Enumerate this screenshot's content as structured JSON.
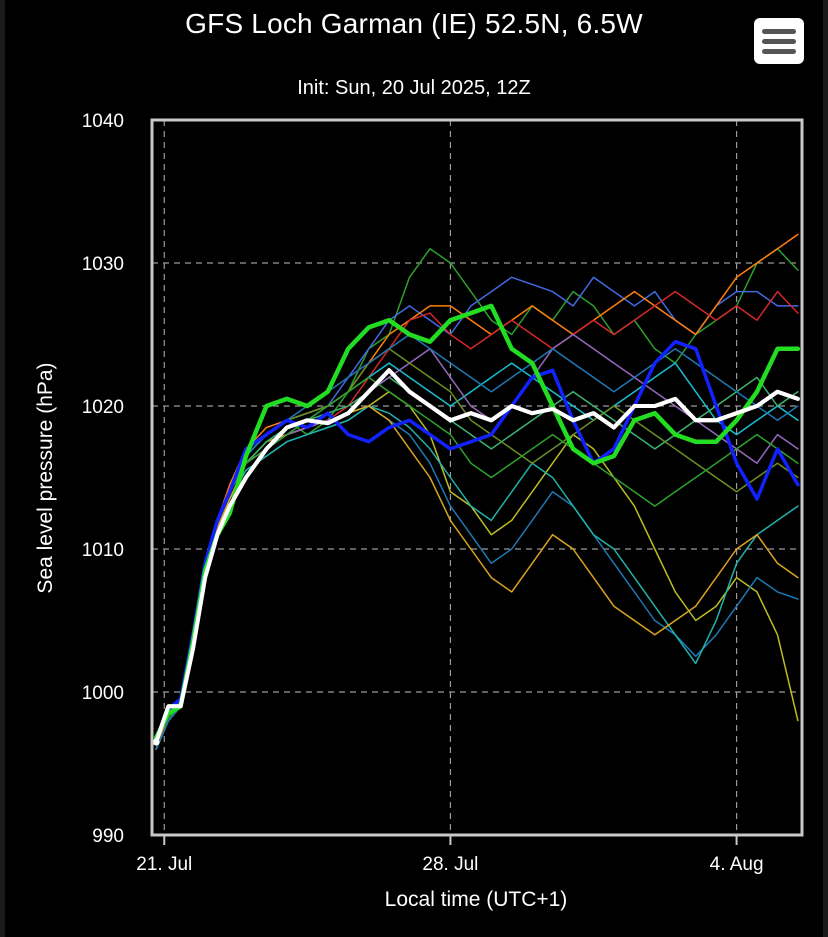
{
  "chart_data": {
    "type": "line",
    "title": "GFS Loch Garman (IE) 52.5N, 6.5W",
    "subtitle": "Init: Sun, 20 Jul 2025, 12Z",
    "xlabel": "Local time (UTC+1)",
    "ylabel": "Sea level pressure (hPa)",
    "x_ticks": [
      {
        "day": 1,
        "label": "21. Jul"
      },
      {
        "day": 8,
        "label": "28. Jul"
      },
      {
        "day": 15,
        "label": "4. Aug"
      }
    ],
    "y_ticks": [
      990,
      1000,
      1010,
      1020,
      1030,
      1040
    ],
    "xlim": [
      0.7,
      16.6
    ],
    "ylim": [
      990,
      1040
    ],
    "grid": true,
    "colors": {
      "background": "#000000",
      "frame": "#c8c8c8",
      "grid": "#9a9a9a",
      "mean": "#ffffff",
      "green": "#22dd22",
      "blue": "#1122ff",
      "ensemble_palette": [
        "#1f77b4",
        "#2ca02c",
        "#17becf",
        "#bcbd22",
        "#ff7f0e",
        "#d62728",
        "#9467bd",
        "#3cb371",
        "#4169e1",
        "#20b2aa",
        "#daa520",
        "#6b8e23"
      ]
    },
    "series_x": [
      0.8,
      1.1,
      1.4,
      1.7,
      2.0,
      2.3,
      2.6,
      3.0,
      3.5,
      4.0,
      4.5,
      5.0,
      5.5,
      6.0,
      6.5,
      7.0,
      7.5,
      8.0,
      8.5,
      9.0,
      9.5,
      10.0,
      10.5,
      11.0,
      11.5,
      12.0,
      12.5,
      13.0,
      13.5,
      14.0,
      14.5,
      15.0,
      15.5,
      16.0,
      16.5
    ],
    "series": [
      {
        "values": [
          996.5,
          999,
          999,
          1003,
          1008,
          1011,
          1013,
          1015,
          1017,
          1018.5,
          1019,
          1018.8,
          1019.5,
          1021,
          1022.5,
          1021,
          1020,
          1019,
          1019.5,
          1019,
          1020,
          1019.5,
          1019.8,
          1019,
          1019.5,
          1018.5,
          1020,
          1020,
          1020.5,
          1019,
          1019,
          1019.5,
          1020,
          1021,
          1020.5
        ],
        "color": "#ffffff",
        "width": 4
      },
      {
        "values": [
          996.8,
          998.5,
          999,
          1003.5,
          1008.5,
          1011,
          1012.5,
          1016.5,
          1020,
          1020.5,
          1020,
          1021,
          1024,
          1025.5,
          1026,
          1025,
          1024.5,
          1026,
          1026.5,
          1027,
          1024,
          1023,
          1020,
          1017,
          1016,
          1016.5,
          1019,
          1019.5,
          1018,
          1017.5,
          1017.5,
          1019,
          1021,
          1024,
          1024
        ],
        "color": "#22dd22",
        "width": 4.5
      },
      {
        "values": [
          996.5,
          998.8,
          999.5,
          1004,
          1009,
          1012,
          1014,
          1017,
          1018,
          1019,
          1018.5,
          1019.5,
          1018,
          1017.5,
          1018.5,
          1019,
          1018,
          1017,
          1017.5,
          1018,
          1020,
          1022,
          1022.5,
          1019,
          1016,
          1017,
          1020,
          1023,
          1024.5,
          1024,
          1020,
          1016,
          1013.5,
          1017,
          1014.5
        ],
        "color": "#1122ff",
        "width": 3.5
      },
      {
        "values": [
          996,
          998,
          999.5,
          1004,
          1009,
          1012,
          1014,
          1016.5,
          1018,
          1019,
          1018,
          1019,
          1021,
          1024,
          1025,
          1029,
          1031,
          1030,
          1028,
          1026,
          1025,
          1027,
          1026,
          1028,
          1027,
          1025,
          1026,
          1024,
          1023,
          1025,
          1026,
          1027,
          1030,
          1031,
          1029.5
        ],
        "color": "#2ca02c",
        "width": 1.5
      },
      {
        "values": [
          996,
          998,
          999,
          1004,
          1009,
          1012,
          1014,
          1016,
          1017,
          1018,
          1019,
          1020,
          1022,
          1024,
          1026,
          1027,
          1026,
          1025,
          1027,
          1028,
          1029,
          1028.5,
          1028,
          1027,
          1029,
          1028,
          1027,
          1028,
          1026,
          1025,
          1027,
          1028,
          1028,
          1027,
          1027
        ],
        "color": "#4169e1",
        "width": 1.5
      },
      {
        "values": [
          996,
          998.5,
          999,
          1004,
          1009,
          1012,
          1014.5,
          1017,
          1018.5,
          1019,
          1019.5,
          1020,
          1021,
          1023,
          1025,
          1026,
          1027,
          1027,
          1026,
          1025,
          1026,
          1027,
          1026,
          1025,
          1026,
          1027,
          1028,
          1027,
          1026,
          1025,
          1027,
          1029,
          1030,
          1031,
          1032
        ],
        "color": "#ff7f0e",
        "width": 1.5
      },
      {
        "values": [
          996,
          998,
          999,
          1004,
          1008.5,
          1011.5,
          1013.5,
          1016,
          1017,
          1018,
          1018.5,
          1019,
          1020,
          1022,
          1024,
          1026,
          1026.5,
          1025,
          1024,
          1025,
          1026,
          1025,
          1024,
          1025,
          1026,
          1025,
          1026,
          1027,
          1028,
          1027,
          1026,
          1027,
          1026,
          1028,
          1026.5
        ],
        "color": "#d62728",
        "width": 1.5
      },
      {
        "values": [
          996,
          998,
          999,
          1004,
          1009,
          1012,
          1014,
          1016,
          1017,
          1018,
          1018.5,
          1019,
          1019.5,
          1020,
          1021,
          1020,
          1018,
          1014,
          1013,
          1011,
          1012,
          1014,
          1016,
          1018,
          1017,
          1015,
          1013,
          1010,
          1007,
          1005,
          1006,
          1008,
          1007,
          1004,
          998
        ],
        "color": "#bcbd22",
        "width": 1.5
      },
      {
        "values": [
          996,
          998,
          999,
          1003.5,
          1008.5,
          1011.5,
          1013.5,
          1015.5,
          1016.5,
          1017.5,
          1018,
          1018.5,
          1019,
          1020,
          1019,
          1018,
          1016,
          1013,
          1011,
          1009,
          1010,
          1012,
          1014,
          1013,
          1011,
          1009,
          1007,
          1005,
          1004,
          1002.5,
          1004,
          1006,
          1008,
          1007,
          1006.5
        ],
        "color": "#1f77b4",
        "width": 1.5
      },
      {
        "values": [
          996,
          998,
          999,
          1003.5,
          1008.5,
          1011.5,
          1013.5,
          1015.5,
          1016.5,
          1017.5,
          1018,
          1018.5,
          1019,
          1020,
          1019.5,
          1018.5,
          1017,
          1015,
          1013,
          1012,
          1014,
          1016,
          1015,
          1013,
          1011,
          1010,
          1008,
          1006,
          1004,
          1002,
          1005,
          1009,
          1011,
          1012,
          1013
        ],
        "color": "#20b2aa",
        "width": 1.5
      },
      {
        "values": [
          996,
          998,
          999,
          1004,
          1009,
          1012,
          1014,
          1016.5,
          1018,
          1019,
          1019.5,
          1020,
          1021,
          1022,
          1023,
          1022,
          1021,
          1020,
          1021,
          1022,
          1023,
          1022,
          1021,
          1020,
          1019,
          1020,
          1021,
          1022,
          1023,
          1021,
          1019,
          1018,
          1019,
          1020,
          1019
        ],
        "color": "#17becf",
        "width": 1.5
      },
      {
        "values": [
          996,
          998,
          999,
          1004,
          1008.5,
          1011.5,
          1013.5,
          1016,
          1017.5,
          1018,
          1018.5,
          1019,
          1019.5,
          1020,
          1019,
          1017,
          1015,
          1012,
          1010,
          1008,
          1007,
          1009,
          1011,
          1010,
          1008,
          1006,
          1005,
          1004,
          1005,
          1006,
          1008,
          1010,
          1011,
          1009,
          1008
        ],
        "color": "#daa520",
        "width": 1.5
      },
      {
        "values": [
          996,
          998,
          999,
          1004,
          1009,
          1012,
          1014,
          1016,
          1017.5,
          1018.5,
          1019,
          1019.5,
          1020,
          1021,
          1022,
          1021,
          1020,
          1019,
          1018,
          1017,
          1018,
          1019,
          1020,
          1021,
          1020,
          1019,
          1018,
          1017,
          1018,
          1019,
          1020,
          1021,
          1022,
          1020,
          1021
        ],
        "color": "#3cb371",
        "width": 1.5
      },
      {
        "values": [
          996,
          998,
          999,
          1004,
          1009,
          1012,
          1014,
          1016,
          1017,
          1018,
          1018.5,
          1019,
          1019.5,
          1021,
          1022,
          1023,
          1024,
          1022,
          1020,
          1019,
          1020,
          1022,
          1024,
          1025,
          1024,
          1023,
          1022,
          1021,
          1020,
          1019,
          1018,
          1017,
          1016,
          1018,
          1017
        ],
        "color": "#9467bd",
        "width": 1.5
      },
      {
        "values": [
          996,
          998,
          999,
          1004,
          1009,
          1012,
          1014,
          1016.5,
          1018,
          1019,
          1019.5,
          1020,
          1021,
          1023,
          1024,
          1023,
          1022,
          1021,
          1019,
          1018,
          1017,
          1016,
          1017,
          1018,
          1019,
          1020,
          1019,
          1018,
          1017,
          1016,
          1015,
          1014,
          1015,
          1016,
          1015
        ],
        "color": "#6b8e23",
        "width": 1.5
      },
      {
        "values": [
          996,
          998,
          999,
          1004,
          1009,
          1012,
          1014,
          1016,
          1017,
          1018,
          1019,
          1020,
          1021,
          1022,
          1021,
          1020,
          1019,
          1018,
          1016,
          1015,
          1016,
          1017,
          1018,
          1017,
          1016,
          1015,
          1014,
          1013,
          1014,
          1015,
          1016,
          1017,
          1018,
          1017,
          1016
        ],
        "color": "#2ca02c",
        "width": 1.5
      },
      {
        "values": [
          996,
          998,
          999,
          1004,
          1009,
          1012,
          1014,
          1016.5,
          1018,
          1019,
          1020,
          1021,
          1022,
          1023,
          1024,
          1025,
          1024,
          1023,
          1022,
          1021,
          1022,
          1023,
          1024,
          1023,
          1022,
          1021,
          1022,
          1023,
          1024,
          1023,
          1022,
          1021,
          1020,
          1019,
          1020
        ],
        "color": "#1f77b4",
        "width": 1.5
      }
    ]
  },
  "ui": {
    "menu_icon": "hamburger-icon"
  }
}
